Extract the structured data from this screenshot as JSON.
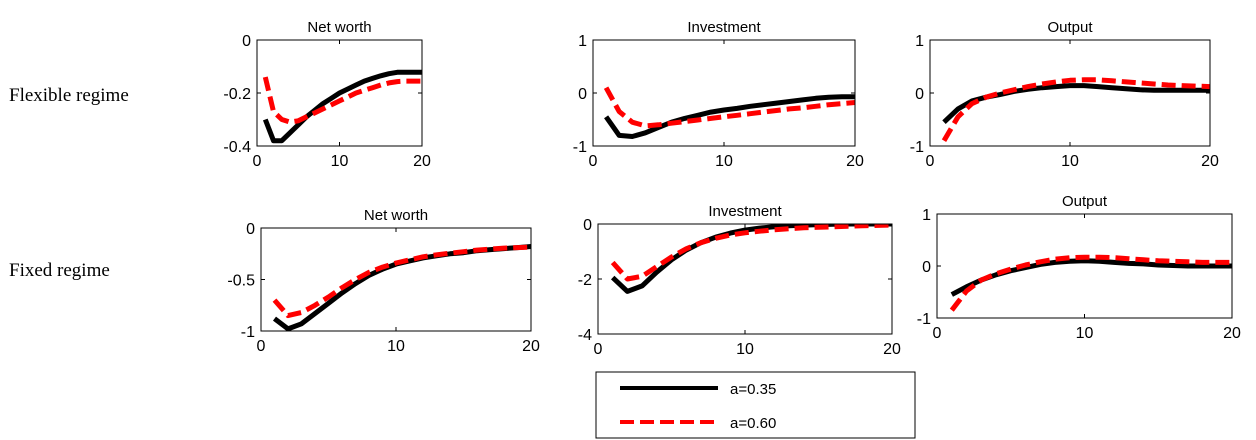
{
  "figure": {
    "row_labels": [
      "Flexible regime",
      "Fixed regime"
    ]
  },
  "legend": {
    "entries": [
      {
        "label": "a=0.35",
        "color": "#000000",
        "style": "solid"
      },
      {
        "label": "a=0.60",
        "color": "#ff0000",
        "style": "dashed"
      }
    ]
  },
  "chart_data": [
    {
      "type": "line",
      "title": "Net worth",
      "row": 0,
      "col": 0,
      "xlim": [
        0,
        20
      ],
      "ylim": [
        -0.4,
        0
      ],
      "xticks": [
        0,
        10,
        20
      ],
      "xtick_labels": [
        "0",
        "10",
        "20"
      ],
      "yticks": [
        0,
        -0.2,
        -0.4
      ],
      "ytick_labels": [
        "0",
        "-0.2",
        "-0.4"
      ],
      "x": [
        1,
        2,
        3,
        4,
        5,
        6,
        7,
        8,
        9,
        10,
        11,
        12,
        13,
        14,
        15,
        16,
        17,
        18,
        19,
        20
      ],
      "series": [
        {
          "name": "a=0.35",
          "values": [
            -0.3,
            -0.38,
            -0.38,
            -0.35,
            -0.32,
            -0.29,
            -0.265,
            -0.24,
            -0.22,
            -0.2,
            -0.185,
            -0.17,
            -0.155,
            -0.145,
            -0.135,
            -0.127,
            -0.122,
            -0.122,
            -0.122,
            -0.122
          ]
        },
        {
          "name": "a=0.60",
          "values": [
            -0.14,
            -0.27,
            -0.3,
            -0.31,
            -0.305,
            -0.29,
            -0.275,
            -0.26,
            -0.245,
            -0.23,
            -0.215,
            -0.2,
            -0.19,
            -0.18,
            -0.17,
            -0.162,
            -0.157,
            -0.155,
            -0.155,
            -0.155
          ]
        }
      ]
    },
    {
      "type": "line",
      "title": "Investment",
      "row": 0,
      "col": 1,
      "xlim": [
        0,
        20
      ],
      "ylim": [
        -1,
        1
      ],
      "xticks": [
        0,
        10,
        20
      ],
      "xtick_labels": [
        "0",
        "10",
        "20"
      ],
      "yticks": [
        1,
        0,
        -1
      ],
      "ytick_labels": [
        "1",
        "0",
        "-1"
      ],
      "x": [
        1,
        2,
        3,
        4,
        5,
        6,
        7,
        8,
        9,
        10,
        11,
        12,
        13,
        14,
        15,
        16,
        17,
        18,
        19,
        20
      ],
      "series": [
        {
          "name": "a=0.35",
          "values": [
            -0.45,
            -0.8,
            -0.82,
            -0.75,
            -0.65,
            -0.55,
            -0.48,
            -0.42,
            -0.36,
            -0.32,
            -0.29,
            -0.25,
            -0.22,
            -0.19,
            -0.16,
            -0.13,
            -0.1,
            -0.08,
            -0.07,
            -0.07
          ]
        },
        {
          "name": "a=0.60",
          "values": [
            0.1,
            -0.35,
            -0.55,
            -0.62,
            -0.6,
            -0.57,
            -0.54,
            -0.51,
            -0.48,
            -0.45,
            -0.42,
            -0.39,
            -0.36,
            -0.33,
            -0.3,
            -0.28,
            -0.25,
            -0.22,
            -0.2,
            -0.18
          ]
        }
      ]
    },
    {
      "type": "line",
      "title": "Output",
      "row": 0,
      "col": 2,
      "xlim": [
        0,
        20
      ],
      "ylim": [
        -1,
        1
      ],
      "xticks": [
        0,
        10,
        20
      ],
      "xtick_labels": [
        "0",
        "10",
        "20"
      ],
      "yticks": [
        1,
        0,
        -1
      ],
      "ytick_labels": [
        "1",
        "0",
        "-1"
      ],
      "x": [
        1,
        2,
        3,
        4,
        5,
        6,
        7,
        8,
        9,
        10,
        11,
        12,
        13,
        14,
        15,
        16,
        17,
        18,
        19,
        20
      ],
      "series": [
        {
          "name": "a=0.35",
          "values": [
            -0.55,
            -0.3,
            -0.15,
            -0.08,
            -0.03,
            0.03,
            0.07,
            0.1,
            0.12,
            0.14,
            0.14,
            0.12,
            0.1,
            0.08,
            0.06,
            0.05,
            0.05,
            0.05,
            0.05,
            0.05
          ]
        },
        {
          "name": "a=0.60",
          "values": [
            -0.9,
            -0.45,
            -0.2,
            -0.08,
            0.0,
            0.06,
            0.12,
            0.17,
            0.21,
            0.24,
            0.25,
            0.25,
            0.23,
            0.21,
            0.19,
            0.17,
            0.15,
            0.14,
            0.13,
            0.12
          ]
        }
      ]
    },
    {
      "type": "line",
      "title": "Net worth",
      "row": 1,
      "col": 0,
      "xlim": [
        0,
        20
      ],
      "ylim": [
        -1,
        0
      ],
      "xticks": [
        0,
        10,
        20
      ],
      "xtick_labels": [
        "0",
        "10",
        "20"
      ],
      "yticks": [
        0,
        -0.5,
        -1
      ],
      "ytick_labels": [
        "0",
        "-0.5",
        "-1"
      ],
      "x": [
        1,
        2,
        3,
        4,
        5,
        6,
        7,
        8,
        9,
        10,
        11,
        12,
        13,
        14,
        15,
        16,
        17,
        18,
        19,
        20
      ],
      "series": [
        {
          "name": "a=0.35",
          "values": [
            -0.88,
            -0.98,
            -0.93,
            -0.83,
            -0.73,
            -0.63,
            -0.54,
            -0.46,
            -0.4,
            -0.35,
            -0.32,
            -0.29,
            -0.27,
            -0.25,
            -0.24,
            -0.22,
            -0.21,
            -0.2,
            -0.19,
            -0.18
          ]
        },
        {
          "name": "a=0.60",
          "values": [
            -0.7,
            -0.85,
            -0.82,
            -0.75,
            -0.67,
            -0.58,
            -0.5,
            -0.43,
            -0.38,
            -0.34,
            -0.31,
            -0.28,
            -0.26,
            -0.245,
            -0.23,
            -0.215,
            -0.205,
            -0.195,
            -0.19,
            -0.185
          ]
        }
      ]
    },
    {
      "type": "line",
      "title": "Investment",
      "row": 1,
      "col": 1,
      "xlim": [
        0,
        20
      ],
      "ylim": [
        -4,
        0
      ],
      "xticks": [
        0,
        10,
        20
      ],
      "xtick_labels": [
        "0",
        "10",
        "20"
      ],
      "yticks": [
        0,
        -2,
        -4
      ],
      "ytick_labels": [
        "0",
        "-2",
        "-4"
      ],
      "x": [
        1,
        2,
        3,
        4,
        5,
        6,
        7,
        8,
        9,
        10,
        11,
        12,
        13,
        14,
        15,
        16,
        17,
        18,
        19,
        20
      ],
      "series": [
        {
          "name": "a=0.35",
          "values": [
            -1.95,
            -2.45,
            -2.25,
            -1.75,
            -1.3,
            -0.95,
            -0.68,
            -0.48,
            -0.33,
            -0.22,
            -0.15,
            -0.1,
            -0.06,
            -0.04,
            -0.02,
            -0.01,
            0.0,
            0.0,
            0.0,
            0.0
          ]
        },
        {
          "name": "a=0.60",
          "values": [
            -1.4,
            -2.0,
            -1.9,
            -1.55,
            -1.2,
            -0.9,
            -0.68,
            -0.52,
            -0.4,
            -0.32,
            -0.26,
            -0.21,
            -0.17,
            -0.14,
            -0.12,
            -0.1,
            -0.08,
            -0.06,
            -0.05,
            -0.04
          ]
        }
      ]
    },
    {
      "type": "line",
      "title": "Output",
      "row": 1,
      "col": 2,
      "xlim": [
        0,
        20
      ],
      "ylim": [
        -1,
        1
      ],
      "xticks": [
        0,
        10,
        20
      ],
      "xtick_labels": [
        "0",
        "10",
        "20"
      ],
      "yticks": [
        1,
        0,
        -1
      ],
      "ytick_labels": [
        "1",
        "0",
        "-1"
      ],
      "x": [
        1,
        2,
        3,
        4,
        5,
        6,
        7,
        8,
        9,
        10,
        11,
        12,
        13,
        14,
        15,
        16,
        17,
        18,
        19,
        20
      ],
      "series": [
        {
          "name": "a=0.35",
          "values": [
            -0.55,
            -0.4,
            -0.27,
            -0.17,
            -0.09,
            -0.03,
            0.03,
            0.07,
            0.09,
            0.1,
            0.09,
            0.07,
            0.05,
            0.04,
            0.02,
            0.01,
            0.0,
            0.0,
            0.0,
            0.0
          ]
        },
        {
          "name": "a=0.60",
          "values": [
            -0.85,
            -0.48,
            -0.27,
            -0.15,
            -0.06,
            0.02,
            0.08,
            0.13,
            0.16,
            0.17,
            0.17,
            0.16,
            0.14,
            0.12,
            0.1,
            0.09,
            0.08,
            0.07,
            0.07,
            0.07
          ]
        }
      ]
    }
  ]
}
